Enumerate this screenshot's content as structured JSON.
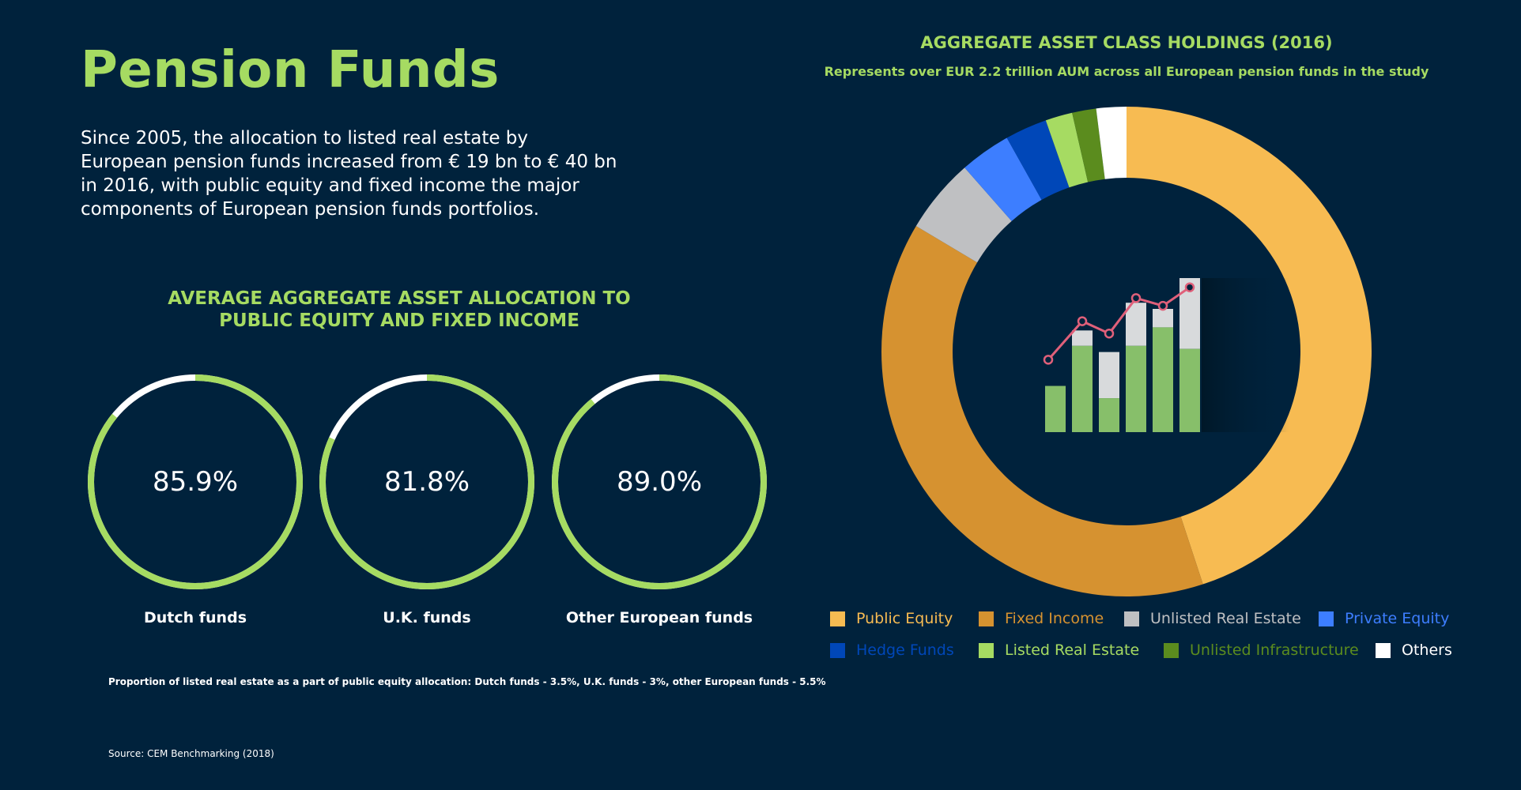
{
  "page": {
    "title": "Pension Funds",
    "intro": "Since 2005, the allocation to listed real estate by European pension funds increased from € 19 bn to € 40 bn in 2016, with public equity and fixed income the major components of European pension funds portfolios.",
    "footnote": "Proportion of listed real estate as a part of public equity allocation: Dutch funds - 3.5%, U.K. funds - 3%, other European funds - 5.5%",
    "source": "Source: CEM Benchmarking (2018)"
  },
  "colors": {
    "background": "#00223c",
    "accent_green": "#a6db62",
    "ring_remainder": "#ffffff"
  },
  "chart_data": [
    {
      "type": "pie",
      "subtype": "progress-rings",
      "title_lines": [
        "AVERAGE AGGREGATE ASSET ALLOCATION TO",
        "PUBLIC EQUITY AND FIXED INCOME"
      ],
      "unit": "%",
      "rings": [
        {
          "label": "Dutch funds",
          "value": 85.9,
          "display": "85.9%"
        },
        {
          "label": "U.K. funds",
          "value": 81.8,
          "display": "81.8%"
        },
        {
          "label": "Other European funds",
          "value": 89.0,
          "display": "89.0%"
        }
      ]
    },
    {
      "type": "pie",
      "subtype": "donut",
      "title": "AGGREGATE ASSET CLASS HOLDINGS (2016)",
      "subtitle": "Represents over EUR 2.2 trillion AUM across all European pension funds in the study",
      "legend_placement": "bottom",
      "slices": [
        {
          "name": "Public Equity",
          "value": 45.4,
          "color": "#f7bb52"
        },
        {
          "name": "Fixed Income",
          "value": 39.0,
          "color": "#d69230"
        },
        {
          "name": "Unlisted Real Estate",
          "value": 5.0,
          "color": "#bfc0c2"
        },
        {
          "name": "Private Equity",
          "value": 3.4,
          "color": "#3d7eff"
        },
        {
          "name": "Hedge Funds",
          "value": 2.8,
          "color": "#0047b8"
        },
        {
          "name": "Listed Real Estate",
          "value": 1.8,
          "color": "#a6db62"
        },
        {
          "name": "Unlisted Infrastructure",
          "value": 1.6,
          "color": "#5b8c1e"
        },
        {
          "name": "Others",
          "value": 2.0,
          "color": "#ffffff"
        }
      ]
    }
  ],
  "center_illustration": {
    "icon": "bar-and-line-chart-icon",
    "bars_green": [
      0.3,
      0.56,
      0.22,
      0.56,
      0.68,
      0.54
    ],
    "bars_total": [
      0.3,
      0.66,
      0.52,
      0.84,
      0.8,
      1.0
    ],
    "line_points": [
      0.47,
      0.72,
      0.64,
      0.87,
      0.82,
      0.94
    ],
    "bar_color": "#87bf6a",
    "cap_color": "#d8dadc",
    "line_color": "#e0607a"
  }
}
